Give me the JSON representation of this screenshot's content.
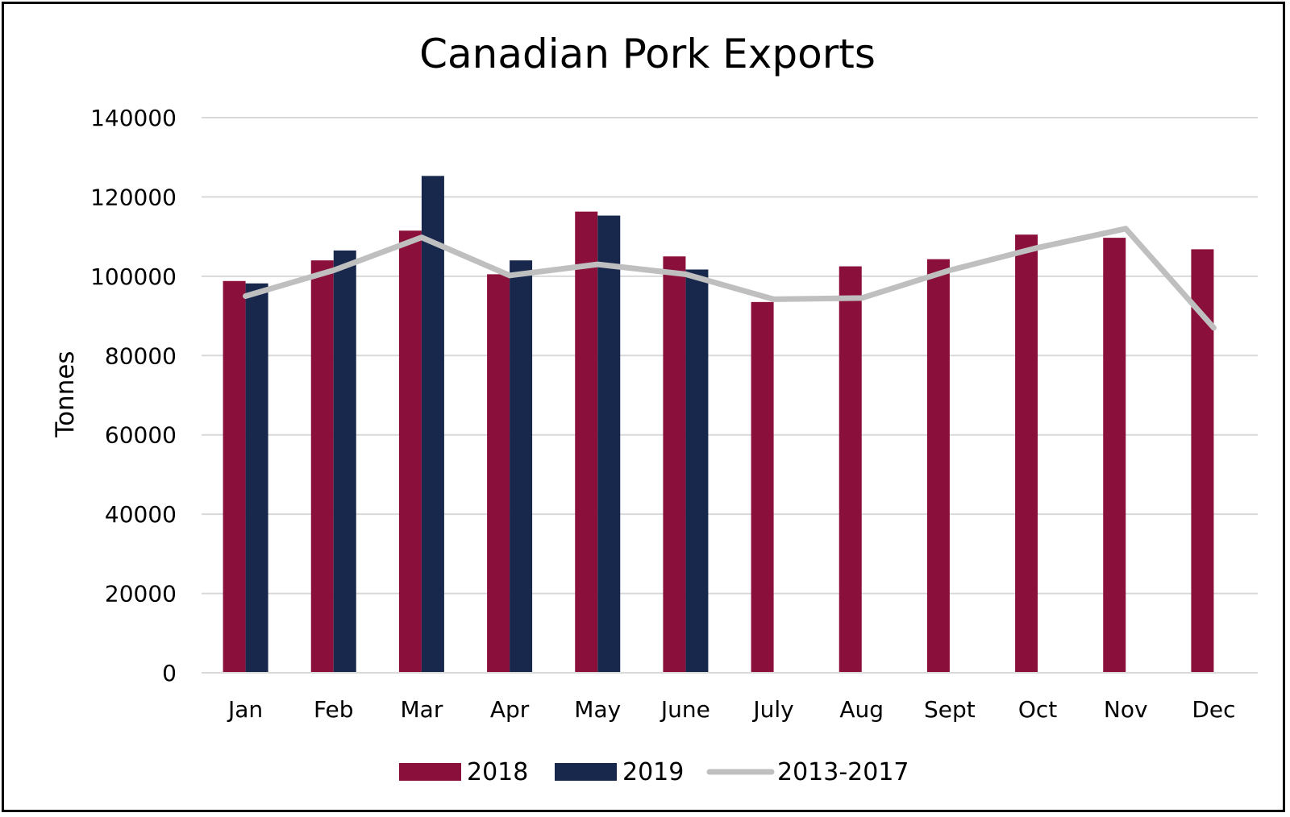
{
  "chart_data": {
    "type": "bar",
    "title": "Canadian Pork Exports",
    "xlabel": "",
    "ylabel": "Tonnes",
    "ylim": [
      0,
      140000
    ],
    "yticks": [
      0,
      20000,
      40000,
      60000,
      80000,
      100000,
      120000,
      140000
    ],
    "grid": true,
    "legend_position": "bottom",
    "categories": [
      "Jan",
      "Feb",
      "Mar",
      "Apr",
      "May",
      "June",
      "July",
      "Aug",
      "Sept",
      "Oct",
      "Nov",
      "Dec"
    ],
    "series": [
      {
        "name": "2018",
        "kind": "bar",
        "color": "#8b0f3b",
        "values": [
          98800,
          104000,
          111500,
          100500,
          116300,
          105000,
          93500,
          102500,
          104300,
          110500,
          109700,
          106800
        ]
      },
      {
        "name": "2019",
        "kind": "bar",
        "color": "#18284d",
        "values": [
          98200,
          106500,
          125300,
          104000,
          115300,
          101700,
          null,
          null,
          null,
          null,
          null,
          null
        ]
      },
      {
        "name": "2013-2017",
        "kind": "line",
        "color": "#bfbfbf",
        "values": [
          95000,
          101500,
          109800,
          100200,
          103000,
          100500,
          94200,
          94500,
          101500,
          107200,
          112000,
          87000
        ]
      }
    ]
  }
}
